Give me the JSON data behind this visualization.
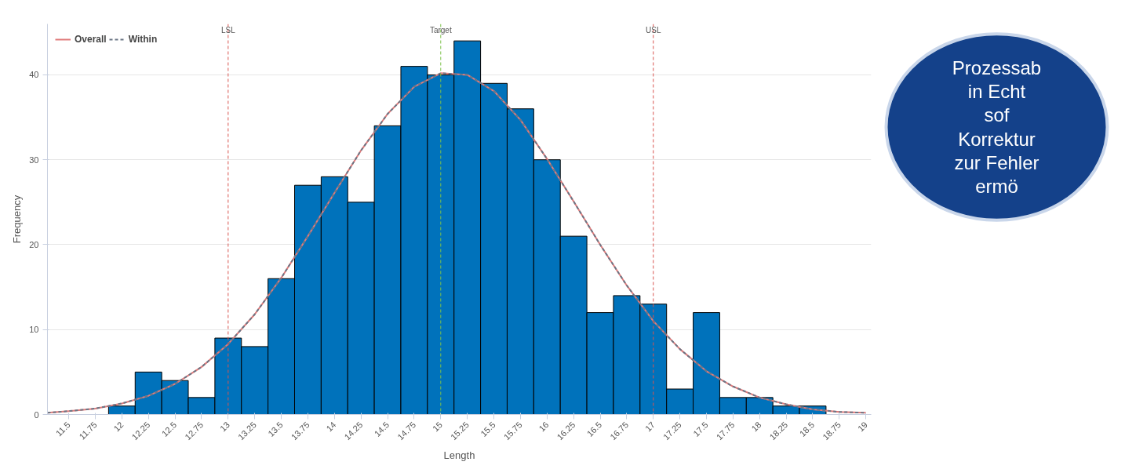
{
  "chart_data": {
    "type": "histogram",
    "xlabel": "Length",
    "ylabel": "Frequency",
    "bins": [
      11.875,
      12.125,
      12.375,
      12.625,
      12.875,
      13.125,
      13.375,
      13.625,
      13.875,
      14.125,
      14.375,
      14.625,
      14.875,
      15.125,
      15.375,
      15.625,
      15.875,
      16.125,
      16.375,
      16.625,
      16.875,
      17.125,
      17.375,
      17.625,
      17.875,
      18.125,
      18.375,
      18.625
    ],
    "values": [
      1,
      5,
      4,
      2,
      9,
      8,
      16,
      27,
      28,
      25,
      34,
      41,
      40,
      44,
      39,
      36,
      30,
      21,
      12,
      14,
      13,
      3,
      12,
      2,
      2,
      1,
      1
    ],
    "color": "#0072bb",
    "series": [
      {
        "name": "Overall",
        "type": "line",
        "color": "#e07b7b",
        "line_style": "solid",
        "x": [
          11.3,
          11.5,
          11.75,
          12,
          12.25,
          12.5,
          12.75,
          13,
          13.25,
          13.5,
          13.75,
          14,
          14.25,
          14.5,
          14.75,
          15,
          15.25,
          15.5,
          15.75,
          16,
          16.25,
          16.5,
          16.75,
          17,
          17.25,
          17.5,
          17.75,
          18,
          18.25,
          18.5,
          18.75,
          19
        ],
        "values": [
          0.2,
          0.4,
          0.7,
          1.3,
          2.2,
          3.6,
          5.6,
          8.3,
          11.8,
          16.1,
          21,
          26.1,
          31.1,
          35.4,
          38.6,
          40.2,
          40,
          38.1,
          34.7,
          30.1,
          25.1,
          20,
          15.2,
          11,
          7.7,
          5.1,
          3.3,
          2,
          1.2,
          0.6,
          0.3,
          0.2
        ]
      },
      {
        "name": "Within",
        "type": "line",
        "color": "#6b7685",
        "line_style": "dashed",
        "x": [
          11.3,
          11.5,
          11.75,
          12,
          12.25,
          12.5,
          12.75,
          13,
          13.25,
          13.5,
          13.75,
          14,
          14.25,
          14.5,
          14.75,
          15,
          15.25,
          15.5,
          15.75,
          16,
          16.25,
          16.5,
          16.75,
          17,
          17.25,
          17.5,
          17.75,
          18,
          18.25,
          18.5,
          18.75,
          19
        ],
        "values": [
          0.2,
          0.4,
          0.7,
          1.3,
          2.2,
          3.6,
          5.6,
          8.3,
          11.8,
          16.1,
          21,
          26.1,
          31.1,
          35.4,
          38.6,
          40.2,
          40,
          38.1,
          34.7,
          30.1,
          25.1,
          20,
          15.2,
          11,
          7.7,
          5.1,
          3.3,
          2,
          1.2,
          0.6,
          0.3,
          0.2
        ]
      }
    ],
    "xlim": [
      11.3,
      19.05
    ],
    "ylim": [
      0,
      46
    ],
    "xticks": [
      11.5,
      11.75,
      12,
      12.25,
      12.5,
      12.75,
      13,
      13.25,
      13.5,
      13.75,
      14,
      14.25,
      14.5,
      14.75,
      15,
      15.25,
      15.5,
      15.75,
      16,
      16.25,
      16.5,
      16.75,
      17,
      17.25,
      17.5,
      17.75,
      18,
      18.25,
      18.5,
      18.75,
      19
    ],
    "yticks": [
      0,
      10,
      20,
      30,
      40
    ],
    "ref_lines": [
      {
        "axis": "x",
        "value": 13,
        "label": "LSL",
        "color": "#d9534f",
        "line_style": "dashed"
      },
      {
        "axis": "x",
        "value": 15,
        "label": "Target",
        "color": "#7cc24a",
        "line_style": "dashed"
      },
      {
        "axis": "x",
        "value": 17,
        "label": "USL",
        "color": "#d9534f",
        "line_style": "dashed"
      }
    ],
    "annotations": [
      "Prozessab",
      "in Echt",
      "sof",
      "Korrektur",
      "zur Fehler",
      "ermö"
    ],
    "grid": "y",
    "legend": "top left"
  }
}
